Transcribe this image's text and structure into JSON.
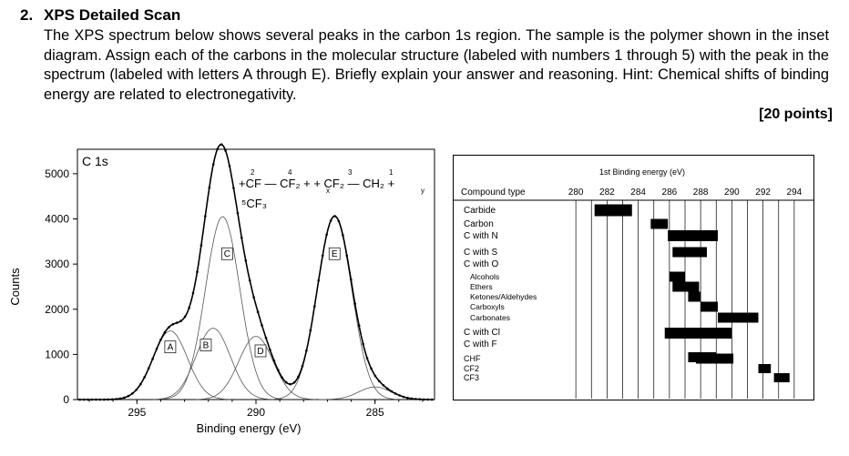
{
  "question": {
    "number": "2.",
    "title": "XPS Detailed Scan",
    "body": "The XPS spectrum below shows several peaks in the carbon 1s region. The sample is the polymer shown in the inset diagram. Assign each of the carbons in the molecular structure (labeled with numbers 1 through 5) with the peak in the spectrum (labeled with letters A through E). Briefly explain  your answer and reasoning. Hint: Chemical shifts of binding energy are related to electronegativity.",
    "points": "[20 points]"
  },
  "chart_data": [
    {
      "type": "line",
      "panel_label": "C 1s",
      "xlabel": "Binding energy (eV)",
      "ylabel": "Counts",
      "x_reversed": true,
      "xlim": [
        297.5,
        282.5
      ],
      "ylim": [
        0,
        5300
      ],
      "x_ticks": [
        "295",
        "290",
        "285"
      ],
      "y_ticks": [
        "0",
        "1000",
        "2000",
        "3000",
        "4000",
        "5000"
      ],
      "peak_labels": [
        "A",
        "B",
        "C",
        "D",
        "E"
      ],
      "peaks": [
        {
          "label": "A",
          "center": 293.6,
          "height": 1520,
          "fwhm": 1.7
        },
        {
          "label": "B",
          "center": 291.8,
          "height": 1580,
          "fwhm": 1.7
        },
        {
          "label": "C",
          "center": 291.4,
          "height": 4050,
          "fwhm": 1.7
        },
        {
          "label": "D",
          "center": 290.0,
          "height": 1400,
          "fwhm": 1.7
        },
        {
          "label": "E",
          "center": 286.7,
          "height": 4050,
          "fwhm": 1.7
        },
        {
          "label": "",
          "center": 285.0,
          "height": 280,
          "fwhm": 1.6
        }
      ],
      "inset_structure": {
        "labels": [
          "2",
          "4",
          "3",
          "1",
          "5"
        ],
        "line1_text": "+CF — CF₂ + + CF₂ — CH₂ +",
        "x": "x",
        "y": "y",
        "line2_text": "⁵CF₃"
      },
      "grid": false
    },
    {
      "type": "bar",
      "title": "1st Binding energy (eV)",
      "column_header": "Compound type",
      "xlim": [
        279,
        295
      ],
      "x_ticks": [
        "280",
        "282",
        "284",
        "286",
        "288",
        "290",
        "292",
        "294"
      ],
      "rows": [
        {
          "label": "Carbide",
          "start": 281.2,
          "end": 283.6,
          "indent": false
        },
        {
          "label": "Carbon",
          "start": 284.8,
          "end": 285.9,
          "indent": false
        },
        {
          "label": "C with N",
          "start": 285.9,
          "end": 289.1,
          "indent": false
        },
        {
          "label": "C with S",
          "start": 286.2,
          "end": 288.4,
          "indent": false
        },
        {
          "label": "C with O",
          "start": null,
          "end": null,
          "indent": false
        },
        {
          "label": "Alcohols",
          "start": 286.0,
          "end": 287.0,
          "indent": true
        },
        {
          "label": "Ethers",
          "start": 286.2,
          "end": 287.9,
          "indent": true
        },
        {
          "label": "Ketones/Aldehydes",
          "start": 287.2,
          "end": 288.0,
          "indent": true
        },
        {
          "label": "Carboxyls",
          "start": 288.0,
          "end": 289.1,
          "indent": true
        },
        {
          "label": "Carbonates",
          "start": 289.1,
          "end": 291.7,
          "indent": true
        },
        {
          "label": "C with Cl",
          "start": 285.7,
          "end": 290.0,
          "indent": false
        },
        {
          "label": "C with F",
          "start": 287.2,
          "end": 289.0,
          "indent": false
        },
        {
          "label": "CHF",
          "start": 287.7,
          "end": 290.1,
          "indent": false
        },
        {
          "label": "CF2",
          "start": 291.7,
          "end": 292.5,
          "indent": false
        },
        {
          "label": "CF3",
          "start": 292.7,
          "end": 293.7,
          "indent": false
        }
      ],
      "grid": true
    }
  ]
}
